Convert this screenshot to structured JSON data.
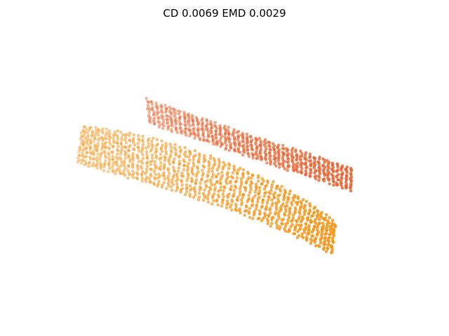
{
  "chart_data": {
    "type": "scatter",
    "title": "CD 0.0069  EMD 0.0029",
    "axes_visible": false,
    "grid": false,
    "legend": "none",
    "series": [
      {
        "color": "#e8622f",
        "opacity": 0.85,
        "point_count_estimate": 650,
        "values": []
      },
      {
        "color": "#f6900f",
        "opacity": 0.85,
        "point_count_estimate": 1100,
        "values": []
      }
    ]
  }
}
